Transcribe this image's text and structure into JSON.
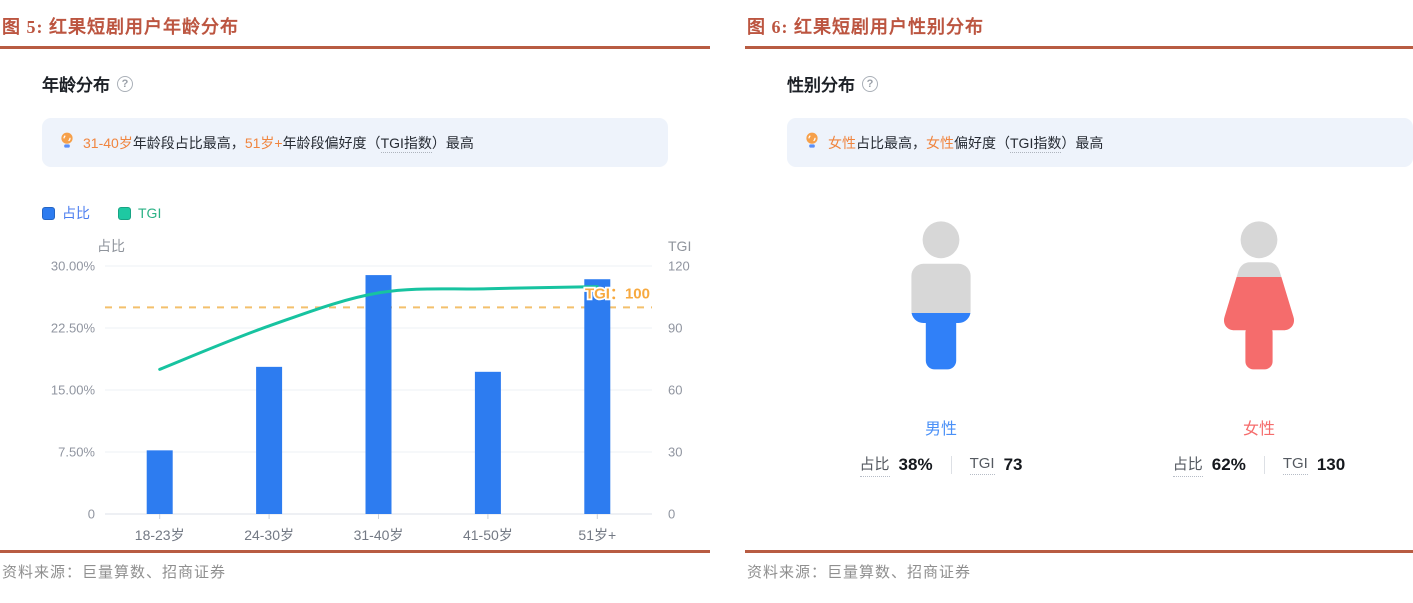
{
  "colors": {
    "accent_brick": "#bc5540",
    "bar_blue": "#2d7cf0",
    "line_green": "#17c3a0",
    "dashed_orange": "#f3c06c",
    "ref_label_orange": "#f7a93f",
    "note_background": "#eef3fb",
    "note_highlight_orange": "#f0853f",
    "male_blue": "#3080f8",
    "female_red": "#f56c6c",
    "icon_gray": "#d7d7d7"
  },
  "icons": {
    "help": "?"
  },
  "figures": {
    "age": {
      "fig_label": "图 5: 红果短剧用户年龄分布",
      "header": "年龄分布",
      "note": {
        "segments": [
          {
            "text": "31-40岁",
            "style": "highlight"
          },
          {
            "text": "年龄段占比最高，",
            "style": "normal"
          },
          {
            "text": "51岁+",
            "style": "highlight"
          },
          {
            "text": "年龄段偏好度（",
            "style": "normal"
          },
          {
            "text": "TGI指数",
            "style": "underline"
          },
          {
            "text": "）最高",
            "style": "normal"
          }
        ]
      },
      "legend": [
        {
          "label": "占比",
          "color": "#2d7cf0",
          "text_color": "#4c7ef0"
        },
        {
          "label": "TGI",
          "color": "#1ec9a2",
          "text_color": "#2bb286"
        }
      ],
      "source": "资料来源：巨量算数、招商证券"
    },
    "gender": {
      "fig_label": "图 6: 红果短剧用户性别分布",
      "header": "性别分布",
      "note": {
        "segments": [
          {
            "text": "女性",
            "style": "highlight"
          },
          {
            "text": "占比最高，",
            "style": "normal"
          },
          {
            "text": "女性",
            "style": "highlight"
          },
          {
            "text": "偏好度（",
            "style": "normal"
          },
          {
            "text": "TGI指数",
            "style": "underline"
          },
          {
            "text": "）最高",
            "style": "normal"
          }
        ]
      },
      "persons": [
        {
          "label": "男性",
          "share_label": "占比",
          "share_value": "38%",
          "tgi_label": "TGI",
          "tgi_value": "73",
          "fill_percent": 38,
          "color": "#3080f8",
          "label_color": "#4a90f7"
        },
        {
          "label": "女性",
          "share_label": "占比",
          "share_value": "62%",
          "tgi_label": "TGI",
          "tgi_value": "130",
          "fill_percent": 62,
          "color": "#f56c6c",
          "label_color": "#f56c6c"
        }
      ],
      "source": "资料来源：巨量算数、招商证券"
    }
  },
  "chart_data": [
    {
      "type": "bar",
      "title": "年龄分布",
      "categories": [
        "18-23岁",
        "24-30岁",
        "31-40岁",
        "41-50岁",
        "51岁+"
      ],
      "series": [
        {
          "name": "占比",
          "kind": "bar",
          "axis": "left",
          "unit": "%",
          "values": [
            7.7,
            17.8,
            28.9,
            17.2,
            28.4
          ],
          "color": "#2d7cf0"
        },
        {
          "name": "TGI",
          "kind": "line",
          "axis": "right",
          "values": [
            70,
            91,
            107,
            109,
            110
          ],
          "color": "#17c3a0"
        }
      ],
      "left_axis": {
        "label": "占比",
        "min": 0,
        "max": 30,
        "ticks": [
          "30.00%",
          "22.50%",
          "15.00%",
          "7.50%",
          "0"
        ]
      },
      "right_axis": {
        "label": "TGI",
        "min": 0,
        "max": 120,
        "ticks": [
          "120",
          "90",
          "60",
          "30",
          "0"
        ]
      },
      "reference_line": {
        "axis": "right",
        "value": 100,
        "label": "TGI：100",
        "line_color": "#f3c06c",
        "label_color": "#f7a93f"
      },
      "grid": true,
      "legend_position": "top-left"
    },
    {
      "type": "pictograph",
      "title": "性别分布",
      "categories": [
        "男性",
        "女性"
      ],
      "series": [
        {
          "name": "占比",
          "unit": "%",
          "values": [
            38,
            62
          ]
        },
        {
          "name": "TGI",
          "values": [
            73,
            130
          ]
        }
      ]
    }
  ]
}
